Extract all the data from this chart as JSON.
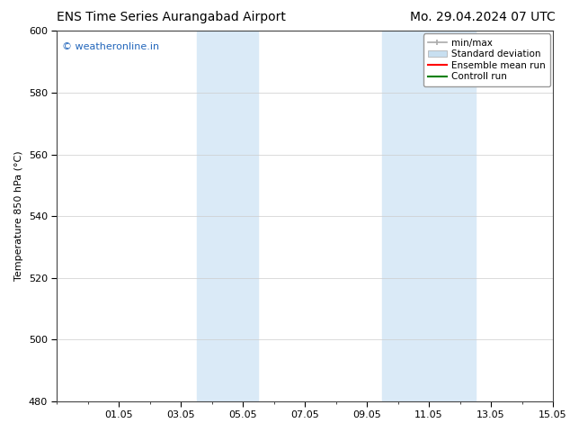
{
  "title_left": "ENS Time Series Aurangabad Airport",
  "title_right": "Mo. 29.04.2024 07 UTC",
  "ylabel": "Temperature 850 hPa (°C)",
  "ylim": [
    480,
    600
  ],
  "yticks": [
    480,
    500,
    520,
    540,
    560,
    580,
    600
  ],
  "xtick_labels": [
    "01.05",
    "03.05",
    "05.05",
    "07.05",
    "09.05",
    "11.05",
    "13.05",
    "15.05"
  ],
  "xtick_positions": [
    2,
    4,
    6,
    8,
    10,
    12,
    14,
    16
  ],
  "xlim": [
    0,
    16
  ],
  "shaded_bands": [
    {
      "x_start": 4.5,
      "x_end": 6.5
    },
    {
      "x_start": 10.5,
      "x_end": 13.5
    }
  ],
  "band_color": "#daeaf7",
  "watermark_text": "© weatheronline.in",
  "watermark_color": "#2266bb",
  "legend_items": [
    {
      "label": "min/max",
      "color": "#aaaaaa",
      "lw": 1.2,
      "style": "solid",
      "type": "line_with_ticks"
    },
    {
      "label": "Standard deviation",
      "color": "#c8dff0",
      "lw": 8,
      "style": "solid",
      "type": "patch"
    },
    {
      "label": "Ensemble mean run",
      "color": "red",
      "lw": 1.5,
      "style": "solid",
      "type": "line"
    },
    {
      "label": "Controll run",
      "color": "green",
      "lw": 1.5,
      "style": "solid",
      "type": "line"
    }
  ],
  "bg_color": "#ffffff",
  "grid_color": "#cccccc",
  "title_fontsize": 10,
  "axis_label_fontsize": 8,
  "tick_fontsize": 8,
  "legend_fontsize": 7.5,
  "watermark_fontsize": 8
}
